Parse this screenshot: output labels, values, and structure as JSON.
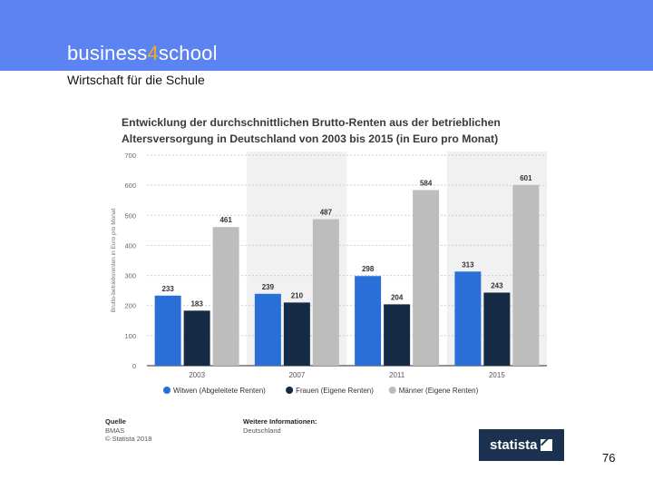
{
  "slide": {
    "brand_prefix": "business",
    "brand_number": "4",
    "brand_suffix": "school",
    "subtitle": "Wirtschaft für die Schule",
    "page_number": "76"
  },
  "colors": {
    "header": "#5b84f2",
    "brand_number": "#f0ad1e",
    "series": [
      "#2a6fd8",
      "#142a45",
      "#bdbdbd"
    ],
    "band": "#f1f1f1",
    "badge": "#1c3150"
  },
  "chart_data": {
    "type": "bar",
    "title": "Entwicklung der durchschnittlichen Brutto-Renten aus der betrieblichen Altersversorgung in Deutschland von 2003 bis 2015 (in Euro pro Monat)",
    "ylabel": "Brutto-betriebsrenten in Euro pro Monat",
    "xlabel": "",
    "categories": [
      "2003",
      "2007",
      "2011",
      "2015"
    ],
    "series": [
      {
        "name": "Witwen (Abgeleitete Renten)",
        "values": [
          233,
          239,
          298,
          313
        ]
      },
      {
        "name": "Frauen (Eigene Renten)",
        "values": [
          183,
          210,
          204,
          243
        ]
      },
      {
        "name": "Männer (Eigene Renten)",
        "values": [
          461,
          487,
          584,
          601
        ]
      }
    ],
    "ylim": [
      0,
      700
    ],
    "yticks": [
      0,
      100,
      200,
      300,
      400,
      500,
      600,
      700
    ],
    "grid": true,
    "legend": "bottom"
  },
  "footer": {
    "source_heading": "Quelle",
    "source_lines": [
      "BMAS",
      "© Statista 2018"
    ],
    "more_heading": "Weitere Informationen:",
    "more_lines": [
      "Deutschland"
    ],
    "badge_text": "statista"
  }
}
